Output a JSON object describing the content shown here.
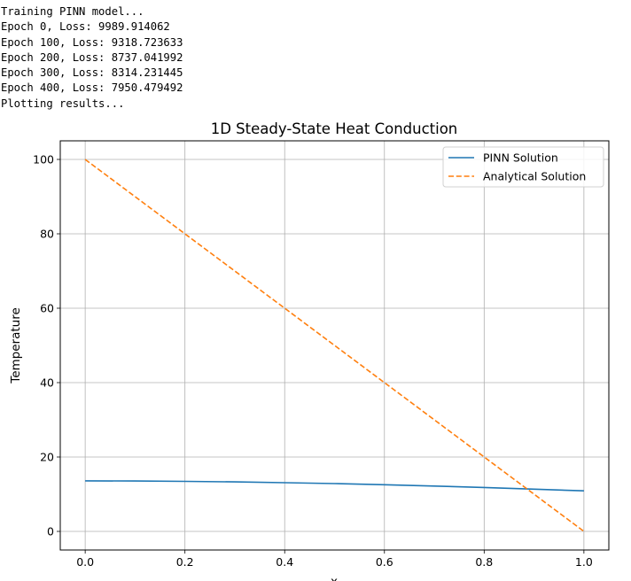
{
  "console": {
    "lines": [
      "Training PINN model...",
      "Epoch 0, Loss: 9989.914062",
      "Epoch 100, Loss: 9318.723633",
      "Epoch 200, Loss: 8737.041992",
      "Epoch 300, Loss: 8314.231445",
      "Epoch 400, Loss: 7950.479492",
      "Plotting results..."
    ]
  },
  "chart_data": {
    "type": "line",
    "title": "1D Steady-State Heat Conduction",
    "xlabel": "x",
    "ylabel": "Temperature",
    "xlim": [
      -0.05,
      1.05
    ],
    "ylim": [
      -5,
      105
    ],
    "xticks": [
      0.0,
      0.2,
      0.4,
      0.6,
      0.8,
      1.0
    ],
    "xtick_labels": [
      "0.0",
      "0.2",
      "0.4",
      "0.6",
      "0.8",
      "1.0"
    ],
    "yticks": [
      0,
      20,
      40,
      60,
      80,
      100
    ],
    "ytick_labels": [
      "0",
      "20",
      "40",
      "60",
      "80",
      "100"
    ],
    "grid": true,
    "legend_position": "top-right",
    "series": [
      {
        "name": "PINN Solution",
        "color": "#1f77b4",
        "style": "solid",
        "x": [
          0.0,
          0.1,
          0.2,
          0.3,
          0.4,
          0.5,
          0.6,
          0.7,
          0.8,
          0.9,
          1.0
        ],
        "y": [
          13.6,
          13.55,
          13.45,
          13.3,
          13.1,
          12.85,
          12.55,
          12.2,
          11.8,
          11.35,
          10.9
        ]
      },
      {
        "name": "Analytical Solution",
        "color": "#ff7f0e",
        "style": "dashed",
        "x": [
          0.0,
          1.0
        ],
        "y": [
          100,
          0
        ]
      }
    ]
  }
}
